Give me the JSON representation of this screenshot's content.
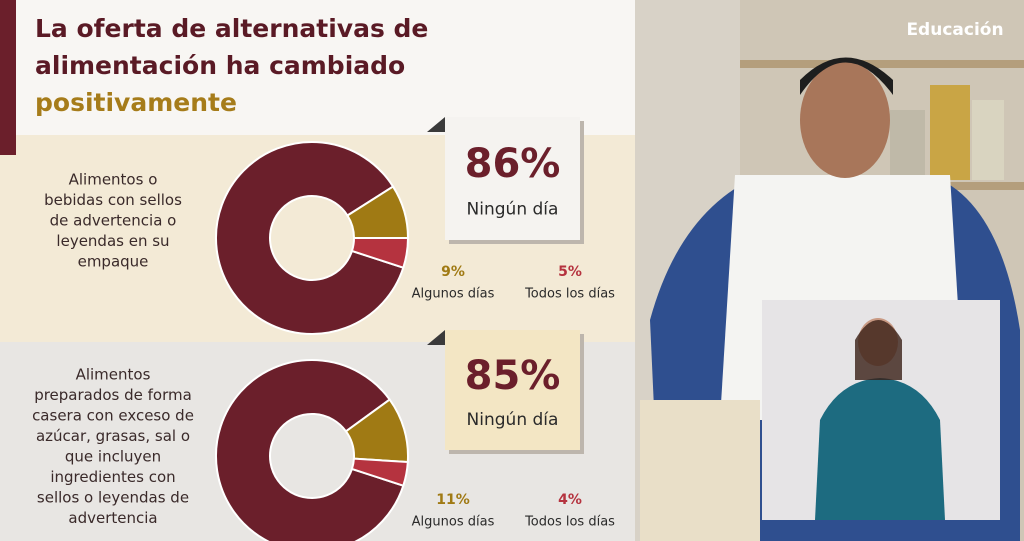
{
  "header": {
    "title_lines": [
      "La oferta de alternativas de",
      "alimentación ha cambiado",
      "positivamente"
    ]
  },
  "logo": "Educación",
  "chart_data": [
    {
      "type": "pie",
      "donut": true,
      "description_lines": [
        "Alimentos o",
        "bebidas con sellos",
        "de advertencia o",
        "leyendas en su",
        "empaque"
      ],
      "categories": [
        "Ningún día",
        "Algunos días",
        "Todos los días"
      ],
      "values": [
        86,
        9,
        5
      ],
      "value_labels": [
        "86%",
        "9%",
        "5%"
      ],
      "colors": [
        "#6b1f2b",
        "#a07a14",
        "#b5333f"
      ]
    },
    {
      "type": "pie",
      "donut": true,
      "description_lines": [
        "Alimentos",
        "preparados de forma",
        "casera con exceso de",
        "azúcar, grasas, sal o",
        "que incluyen",
        "ingredientes con",
        "sellos o leyendas de",
        "advertencia"
      ],
      "categories": [
        "Ningún día",
        "Algunos días",
        "Todos los días"
      ],
      "values": [
        85,
        11,
        4
      ],
      "value_labels": [
        "85%",
        "11%",
        "4%"
      ],
      "colors": [
        "#6b1f2b",
        "#a07a14",
        "#b5333f"
      ]
    }
  ]
}
